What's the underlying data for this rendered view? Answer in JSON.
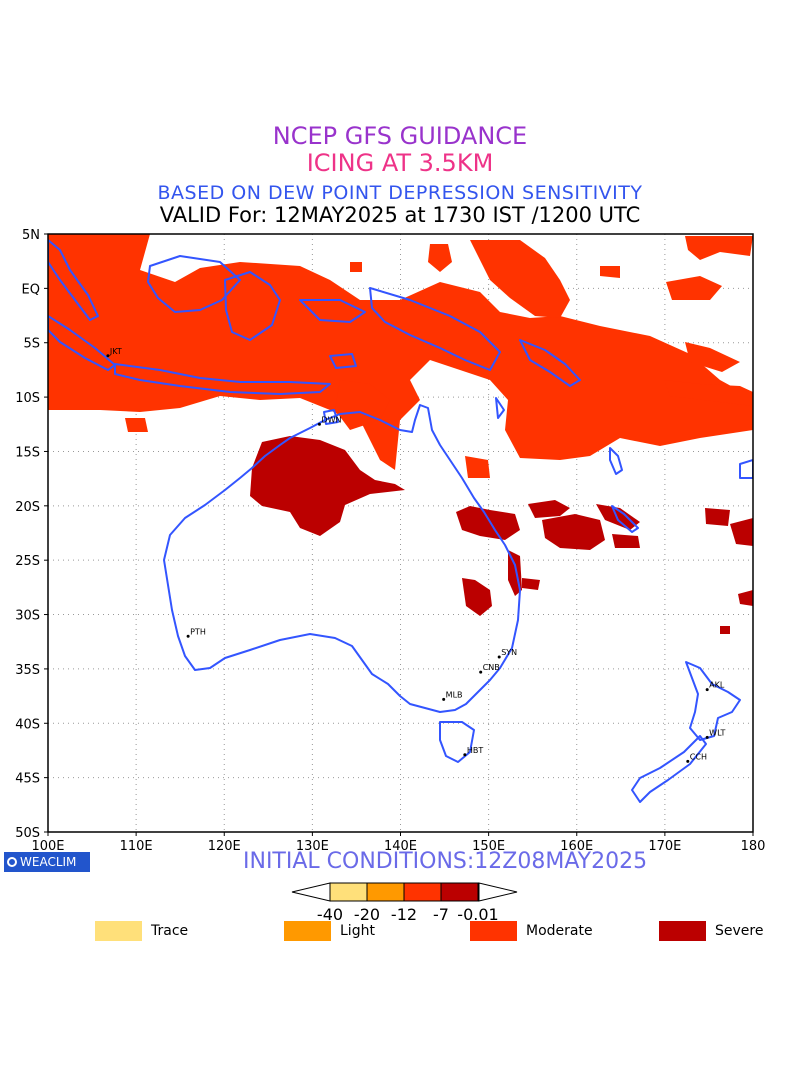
{
  "titles": {
    "line1": "NCEP GFS GUIDANCE",
    "line2": "ICING AT 3.5KM",
    "line3": "BASED ON DEW POINT DEPRESSION SENSITIVITY",
    "line4": "VALID For: 12MAY2025 at 1730 IST /1200 UTC"
  },
  "colors": {
    "line1": "#9933cc",
    "line2": "#ee3388",
    "line3": "#3355ee",
    "line4": "#000000",
    "coast": "#3355ff",
    "moderate": "#ff3300",
    "severe": "#bb0000",
    "trace": "#ffe07a",
    "light": "#ff9900",
    "grid": "#999999"
  },
  "axes": {
    "lat_labels": [
      "5N",
      "EQ",
      "5S",
      "10S",
      "15S",
      "20S",
      "25S",
      "30S",
      "35S",
      "40S",
      "45S",
      "50S"
    ],
    "lon_labels": [
      "100E",
      "110E",
      "120E",
      "130E",
      "140E",
      "150E",
      "160E",
      "170E",
      "180"
    ],
    "lat_range": [
      -50,
      5
    ],
    "lon_range": [
      100,
      180
    ]
  },
  "stations": [
    {
      "code": "JKT",
      "lon": 106.8,
      "lat": -6.2
    },
    {
      "code": "DWN",
      "lon": 130.8,
      "lat": -12.5
    },
    {
      "code": "PTH",
      "lon": 115.9,
      "lat": -32.0
    },
    {
      "code": "SYN",
      "lon": 151.2,
      "lat": -33.9
    },
    {
      "code": "CNB",
      "lon": 149.1,
      "lat": -35.3
    },
    {
      "code": "MLB",
      "lon": 144.9,
      "lat": -37.8
    },
    {
      "code": "HBT",
      "lon": 147.3,
      "lat": -42.9
    },
    {
      "code": "AKL",
      "lon": 174.8,
      "lat": -36.9
    },
    {
      "code": "WLT",
      "lon": 174.8,
      "lat": -41.3
    },
    {
      "code": "CCH",
      "lon": 172.6,
      "lat": -43.5
    }
  ],
  "logo": {
    "text": "WEACLIM",
    "icon": "circle-logo-icon"
  },
  "initial_conditions": "INITIAL CONDITIONS:12Z08MAY2025",
  "colorbar": {
    "ticks": [
      "-40",
      "-20",
      "-12",
      "-7",
      "-0.01"
    ],
    "colors": [
      "#ffe07a",
      "#ff9900",
      "#ff3300",
      "#bb0000"
    ]
  },
  "legend": [
    {
      "label": "Trace",
      "color": "#ffe07a"
    },
    {
      "label": "Light",
      "color": "#ff9900"
    },
    {
      "label": "Moderate",
      "color": "#ff3300"
    },
    {
      "label": "Severe",
      "color": "#bb0000"
    }
  ]
}
